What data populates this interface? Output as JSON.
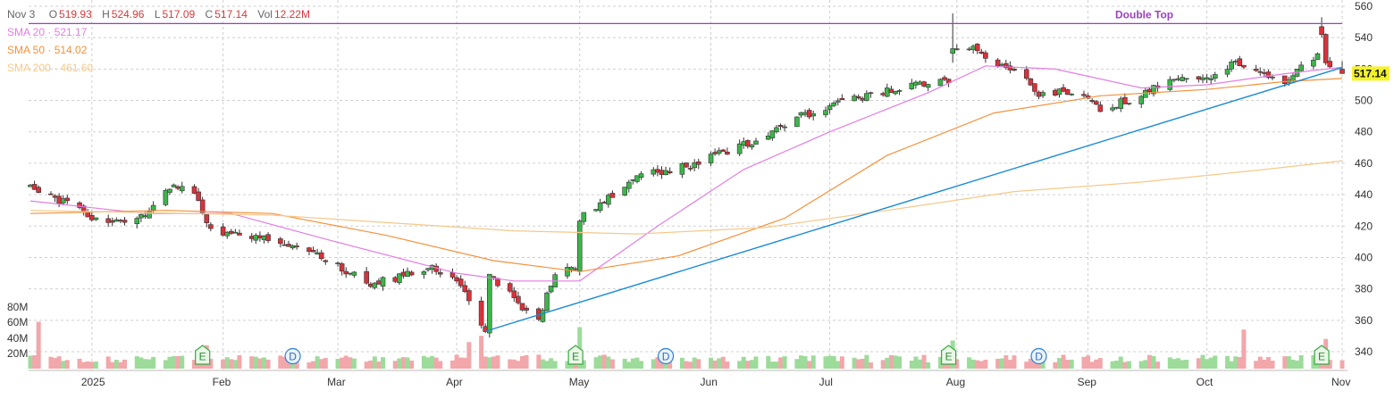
{
  "ohlc_bar": {
    "date": "Nov 3",
    "open_label": "O",
    "open": "519.93",
    "high_label": "H",
    "high": "524.96",
    "low_label": "L",
    "low": "517.09",
    "close_label": "C",
    "close": "517.14",
    "vol_label": "Vol",
    "vol": "12.22M"
  },
  "indicators": [
    {
      "label": "SMA 20",
      "value": "521.17",
      "color": "#e27ee3"
    },
    {
      "label": "SMA 50",
      "value": "514.02",
      "color": "#f4913b"
    },
    {
      "label": "SMA 200",
      "value": "461.60",
      "color": "#f5c98a"
    }
  ],
  "last_price_tag": "517.14",
  "volume_axis_labels": [
    "80M",
    "60M",
    "40M",
    "20M"
  ],
  "colors": {
    "up": "#3cb54a",
    "down": "#d9313b",
    "vol_up": "#9ddb9a",
    "vol_down": "#f2a7ab",
    "trendline": "#1a8ad4",
    "resistance": "#9b3fc0",
    "grid": "#d0d0d0"
  },
  "chart_data": {
    "type": "candlestick",
    "y_axis": {
      "min": 340,
      "max": 560,
      "ticks": [
        340,
        360,
        380,
        400,
        420,
        440,
        460,
        480,
        500,
        520,
        540,
        560
      ],
      "position": "right"
    },
    "x_axis": {
      "labels": [
        "2025",
        "Feb",
        "Mar",
        "Apr",
        "May",
        "Jun",
        "Jul",
        "Aug",
        "Sep",
        "Oct",
        "Nov"
      ],
      "label_dates": [
        "2025-01-02",
        "2025-02-03",
        "2025-03-03",
        "2025-04-01",
        "2025-05-01",
        "2025-06-02",
        "2025-07-01",
        "2025-08-01",
        "2025-09-02",
        "2025-10-01",
        "2025-11-03"
      ],
      "range": [
        "2024-12-18",
        "2025-11-03"
      ]
    },
    "grid": true,
    "price_anchors": [
      {
        "date": "2024-12-18",
        "close": 445
      },
      {
        "date": "2024-12-24",
        "close": 438
      },
      {
        "date": "2024-12-31",
        "close": 428
      },
      {
        "date": "2025-01-10",
        "close": 420
      },
      {
        "date": "2025-01-15",
        "close": 427
      },
      {
        "date": "2025-01-22",
        "close": 446
      },
      {
        "date": "2025-01-28",
        "close": 438
      },
      {
        "date": "2025-01-31",
        "close": 416
      },
      {
        "date": "2025-02-10",
        "close": 412
      },
      {
        "date": "2025-02-18",
        "close": 410
      },
      {
        "date": "2025-02-24",
        "close": 404
      },
      {
        "date": "2025-02-28",
        "close": 398
      },
      {
        "date": "2025-03-06",
        "close": 390
      },
      {
        "date": "2025-03-10",
        "close": 383
      },
      {
        "date": "2025-03-20",
        "close": 389
      },
      {
        "date": "2025-03-26",
        "close": 394
      },
      {
        "date": "2025-04-02",
        "close": 382
      },
      {
        "date": "2025-04-04",
        "close": 374
      },
      {
        "date": "2025-04-08",
        "close": 354
      },
      {
        "date": "2025-04-09",
        "close": 390
      },
      {
        "date": "2025-04-17",
        "close": 368
      },
      {
        "date": "2025-04-21",
        "close": 359
      },
      {
        "date": "2025-04-25",
        "close": 391
      },
      {
        "date": "2025-04-30",
        "close": 395
      },
      {
        "date": "2025-05-01",
        "close": 425
      },
      {
        "date": "2025-05-06",
        "close": 433
      },
      {
        "date": "2025-05-13",
        "close": 449
      },
      {
        "date": "2025-05-19",
        "close": 454
      },
      {
        "date": "2025-05-28",
        "close": 459
      },
      {
        "date": "2025-06-05",
        "close": 467
      },
      {
        "date": "2025-06-16",
        "close": 477
      },
      {
        "date": "2025-06-24",
        "close": 490
      },
      {
        "date": "2025-07-03",
        "close": 498
      },
      {
        "date": "2025-07-10",
        "close": 503
      },
      {
        "date": "2025-07-21",
        "close": 510
      },
      {
        "date": "2025-07-30",
        "close": 513
      },
      {
        "date": "2025-07-31",
        "close": 533
      },
      {
        "date": "2025-08-04",
        "close": 535
      },
      {
        "date": "2025-08-11",
        "close": 524
      },
      {
        "date": "2025-08-15",
        "close": 520
      },
      {
        "date": "2025-08-21",
        "close": 505
      },
      {
        "date": "2025-08-29",
        "close": 506
      },
      {
        "date": "2025-09-05",
        "close": 495
      },
      {
        "date": "2025-09-12",
        "close": 500
      },
      {
        "date": "2025-09-19",
        "close": 510
      },
      {
        "date": "2025-09-26",
        "close": 513
      },
      {
        "date": "2025-10-03",
        "close": 515
      },
      {
        "date": "2025-10-08",
        "close": 524
      },
      {
        "date": "2025-10-14",
        "close": 516
      },
      {
        "date": "2025-10-20",
        "close": 512
      },
      {
        "date": "2025-10-24",
        "close": 522
      },
      {
        "date": "2025-10-28",
        "close": 530
      },
      {
        "date": "2025-10-29",
        "close": 542
      },
      {
        "date": "2025-10-30",
        "close": 525
      },
      {
        "date": "2025-11-03",
        "close": 517.14
      }
    ],
    "highlighted_candles": [
      {
        "date": "2025-07-31",
        "open": 530,
        "high": 555.45,
        "low": 524,
        "close": 533
      },
      {
        "date": "2025-10-29",
        "open": 547,
        "high": 553,
        "low": 540,
        "close": 542
      },
      {
        "date": "2025-11-03",
        "open": 519.93,
        "high": 524.96,
        "low": 517.09,
        "close": 517.14
      }
    ],
    "moving_averages": [
      {
        "name": "SMA 20",
        "points": [
          [
            "2024-12-18",
            436
          ],
          [
            "2025-01-15",
            428
          ],
          [
            "2025-02-05",
            428
          ],
          [
            "2025-03-01",
            411
          ],
          [
            "2025-04-01",
            390
          ],
          [
            "2025-04-15",
            385
          ],
          [
            "2025-05-01",
            385
          ],
          [
            "2025-05-20",
            420
          ],
          [
            "2025-06-10",
            456
          ],
          [
            "2025-07-01",
            480
          ],
          [
            "2025-07-25",
            505
          ],
          [
            "2025-08-08",
            522
          ],
          [
            "2025-08-25",
            520
          ],
          [
            "2025-09-15",
            508
          ],
          [
            "2025-10-01",
            510
          ],
          [
            "2025-10-20",
            517
          ],
          [
            "2025-11-03",
            521.17
          ]
        ]
      },
      {
        "name": "SMA 50",
        "points": [
          [
            "2024-12-18",
            428
          ],
          [
            "2025-01-20",
            430
          ],
          [
            "2025-02-15",
            428
          ],
          [
            "2025-03-15",
            414
          ],
          [
            "2025-04-10",
            398
          ],
          [
            "2025-05-01",
            391
          ],
          [
            "2025-05-25",
            401
          ],
          [
            "2025-06-20",
            425
          ],
          [
            "2025-07-15",
            465
          ],
          [
            "2025-08-10",
            492
          ],
          [
            "2025-09-05",
            503
          ],
          [
            "2025-10-01",
            507
          ],
          [
            "2025-10-20",
            512
          ],
          [
            "2025-11-03",
            514.02
          ]
        ]
      },
      {
        "name": "SMA 200",
        "points": [
          [
            "2024-12-18",
            430
          ],
          [
            "2025-02-15",
            427
          ],
          [
            "2025-04-15",
            417
          ],
          [
            "2025-05-15",
            415
          ],
          [
            "2025-06-15",
            419
          ],
          [
            "2025-07-15",
            430
          ],
          [
            "2025-08-15",
            442
          ],
          [
            "2025-09-15",
            448
          ],
          [
            "2025-10-15",
            456
          ],
          [
            "2025-11-03",
            461.6
          ]
        ]
      }
    ],
    "annotations": [
      {
        "type": "horizontal_line",
        "price": 549,
        "from": "2025-07-30",
        "to": "2025-11-03",
        "text": "Double Top"
      },
      {
        "type": "trendline",
        "from": [
          "2025-04-08",
          353
        ],
        "to": [
          "2025-11-03",
          521
        ]
      }
    ],
    "events": [
      {
        "date": "2025-01-29",
        "letter": "E"
      },
      {
        "date": "2025-02-20",
        "letter": "D"
      },
      {
        "date": "2025-04-30",
        "letter": "E"
      },
      {
        "date": "2025-05-22",
        "letter": "D"
      },
      {
        "date": "2025-07-30",
        "letter": "E"
      },
      {
        "date": "2025-08-21",
        "letter": "D"
      },
      {
        "date": "2025-10-29",
        "letter": "E"
      }
    ],
    "volume": {
      "ylim": [
        0,
        80
      ],
      "unit": "M",
      "spikes": [
        {
          "date": "2024-12-20",
          "value": 60
        },
        {
          "date": "2025-01-30",
          "value": 30
        },
        {
          "date": "2025-04-04",
          "value": 34
        },
        {
          "date": "2025-04-07",
          "value": 42
        },
        {
          "date": "2025-05-01",
          "value": 53
        },
        {
          "date": "2025-07-31",
          "value": 36
        },
        {
          "date": "2025-10-10",
          "value": 50
        },
        {
          "date": "2025-10-30",
          "value": 38
        }
      ]
    }
  }
}
